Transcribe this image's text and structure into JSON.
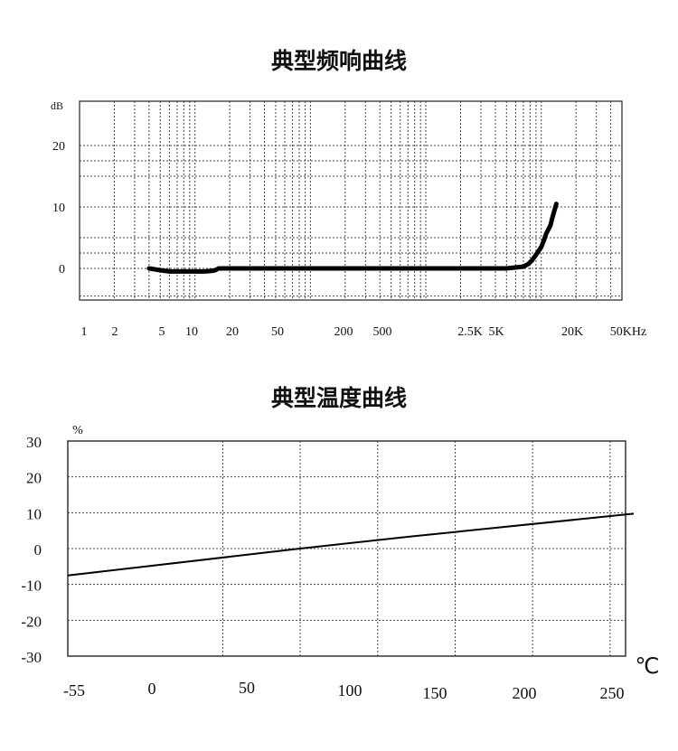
{
  "charts": {
    "freq": {
      "title": "典型频响曲线",
      "ylabel": "dB",
      "xlabel": "",
      "y_ticks": [
        "20",
        "10",
        "0"
      ],
      "x_ticks": [
        "1",
        "2",
        "5",
        "10",
        "20",
        "50",
        "200",
        "500",
        "2.5K",
        "5K",
        "20K",
        "50KHz"
      ]
    },
    "temp": {
      "title": "典型温度曲线",
      "ylabel": "%",
      "xlabel": "℃",
      "y_ticks": [
        "30",
        "20",
        "10",
        "0",
        "-10",
        "-20",
        "-30"
      ],
      "x_ticks": [
        "-55",
        "0",
        "50",
        "100",
        "150",
        "200",
        "250"
      ]
    }
  },
  "chart_data": [
    {
      "type": "line",
      "title": "典型频响曲线",
      "xlabel": "",
      "ylabel": "dB",
      "x_scale": "log",
      "xlim": [
        1,
        50000
      ],
      "ylim": [
        -5,
        25
      ],
      "grid": true,
      "series": [
        {
          "x": [
            4,
            5,
            6,
            8,
            10,
            12,
            14,
            15,
            16,
            17,
            18,
            20,
            30,
            50,
            100,
            200,
            500,
            1000,
            2000,
            3500,
            5000,
            7000,
            7700,
            8300,
            9000,
            10000,
            10500,
            11000,
            12000,
            12500,
            13500
          ],
          "y": [
            0,
            -0.3,
            -0.5,
            -0.5,
            -0.5,
            -0.5,
            -0.4,
            -0.3,
            0,
            0,
            0,
            0,
            0,
            0,
            0,
            0,
            0,
            0,
            0,
            0,
            0,
            0.3,
            0.7,
            1.3,
            2.2,
            3.5,
            4.5,
            5.6,
            7.0,
            8.3,
            10.5
          ]
        }
      ]
    },
    {
      "type": "line",
      "title": "典型温度曲线",
      "xlabel": "℃",
      "ylabel": "%",
      "xlim": [
        -100,
        260
      ],
      "ylim": [
        -30,
        30
      ],
      "grid": true,
      "x_tick_values": [
        -55,
        0,
        50,
        100,
        150,
        200,
        250
      ],
      "series": [
        {
          "x": [
            -100,
            50,
            120,
            260
          ],
          "y": [
            -7.5,
            0,
            3.3,
            9.5
          ]
        }
      ]
    }
  ],
  "colors": {
    "line": "#000000",
    "grid": "#444444",
    "axis": "#333333",
    "text": "#111111"
  }
}
